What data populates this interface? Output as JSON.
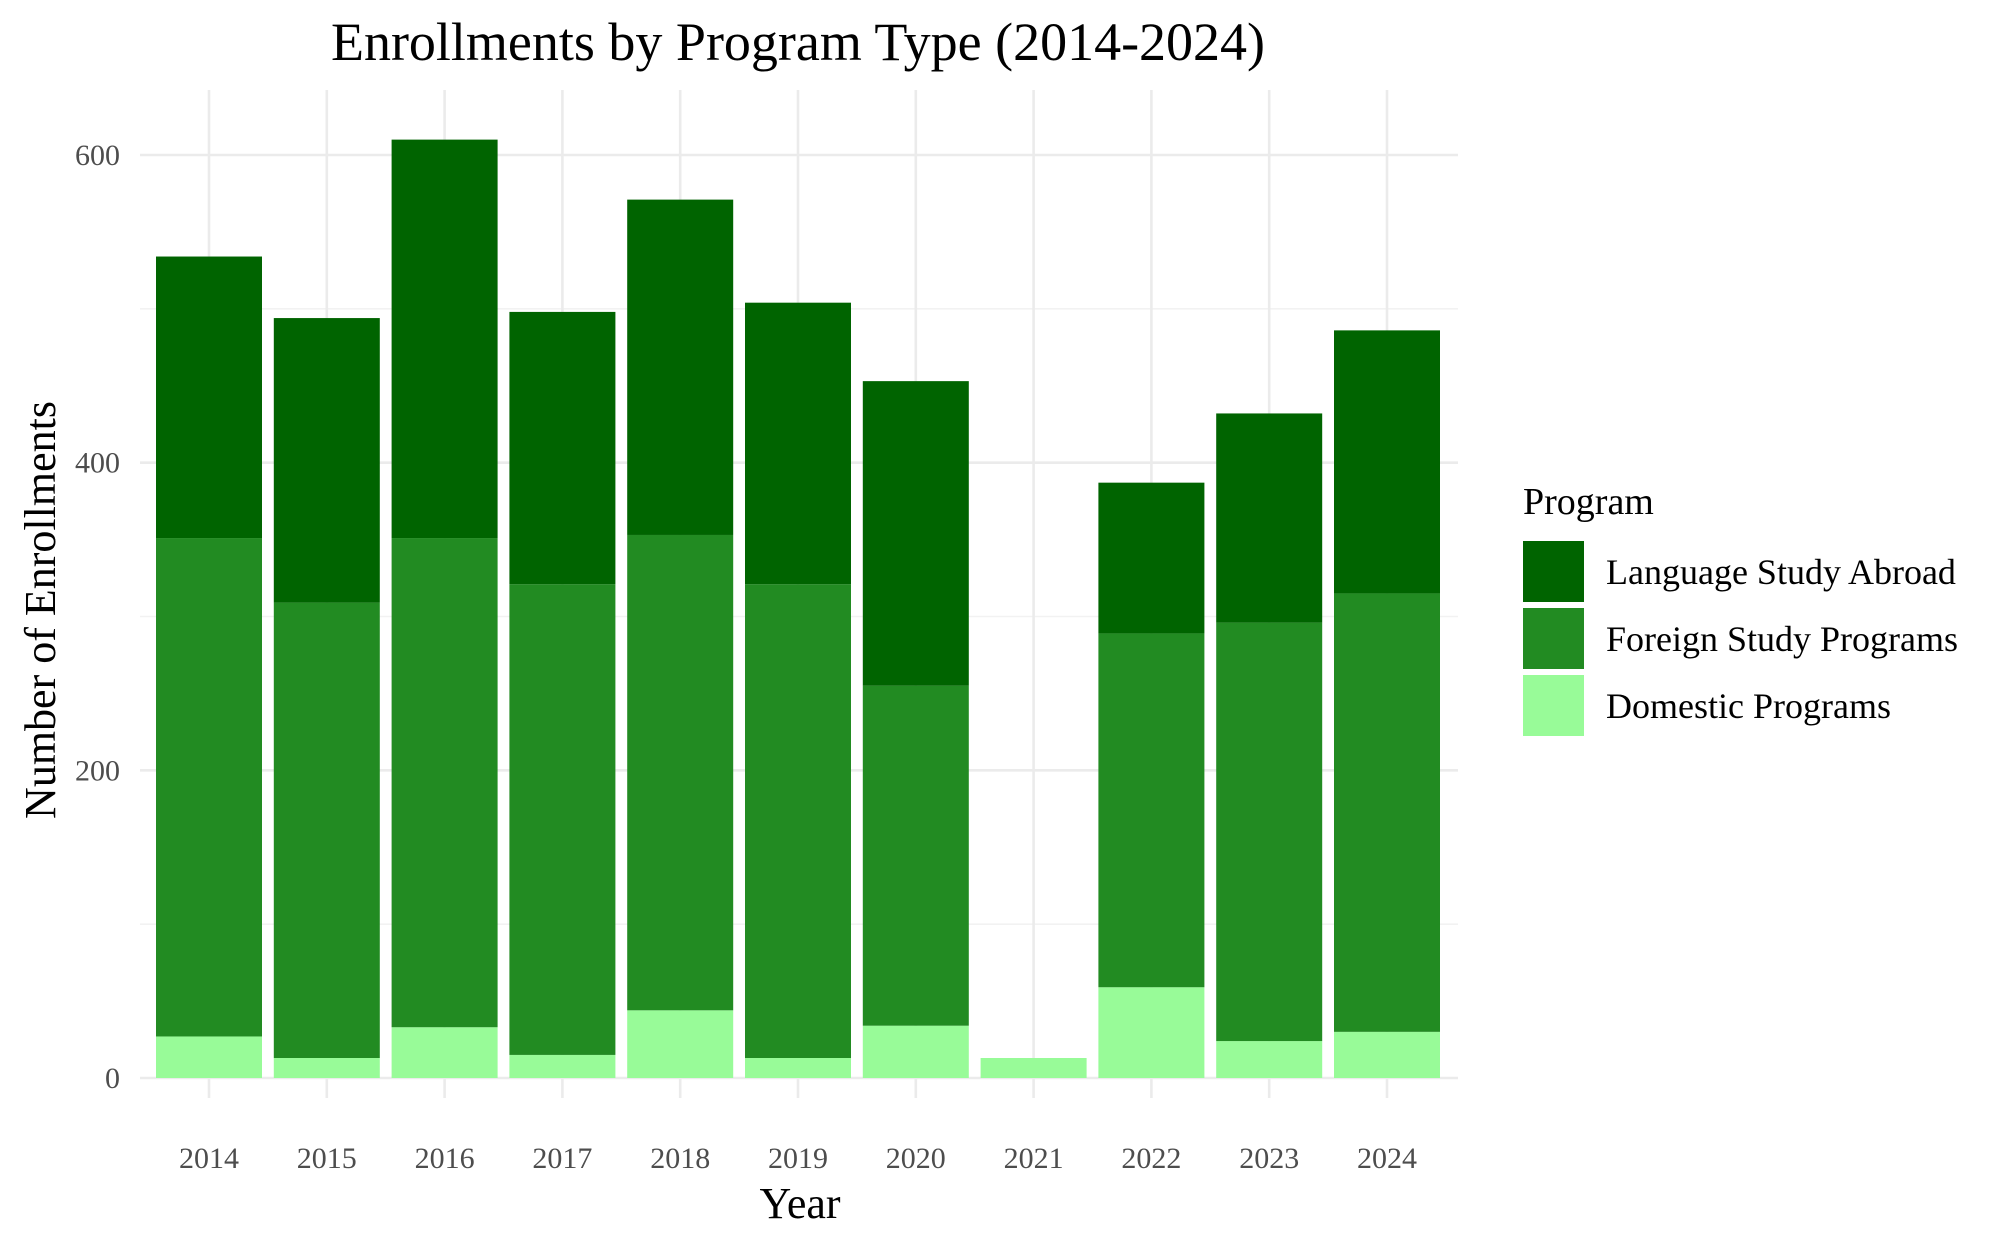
{
  "chart_data": {
    "type": "bar",
    "stacked": true,
    "title": "Enrollments by Program Type (2014-2024)",
    "xlabel": "Year",
    "ylabel": "Number of Enrollments",
    "categories": [
      "2014",
      "2015",
      "2016",
      "2017",
      "2018",
      "2019",
      "2020",
      "2021",
      "2022",
      "2023",
      "2024"
    ],
    "ylim": [
      0,
      640
    ],
    "yticks": [
      0,
      200,
      400,
      600
    ],
    "grid": true,
    "legend": {
      "title": "Program",
      "position": "right"
    },
    "series": [
      {
        "name": "Domestic Programs",
        "color": "#98FB98",
        "values": [
          27,
          13,
          33,
          15,
          44,
          13,
          34,
          13,
          59,
          24,
          30
        ]
      },
      {
        "name": "Foreign Study Programs",
        "color": "#228B22",
        "values": [
          324,
          296,
          318,
          306,
          309,
          308,
          221,
          0,
          230,
          272,
          285
        ]
      },
      {
        "name": "Language Study Abroad",
        "color": "#006400",
        "values": [
          183,
          185,
          259,
          177,
          218,
          183,
          198,
          0,
          98,
          136,
          171
        ]
      }
    ],
    "legend_order": [
      "Language Study Abroad",
      "Foreign Study Programs",
      "Domestic Programs"
    ]
  }
}
